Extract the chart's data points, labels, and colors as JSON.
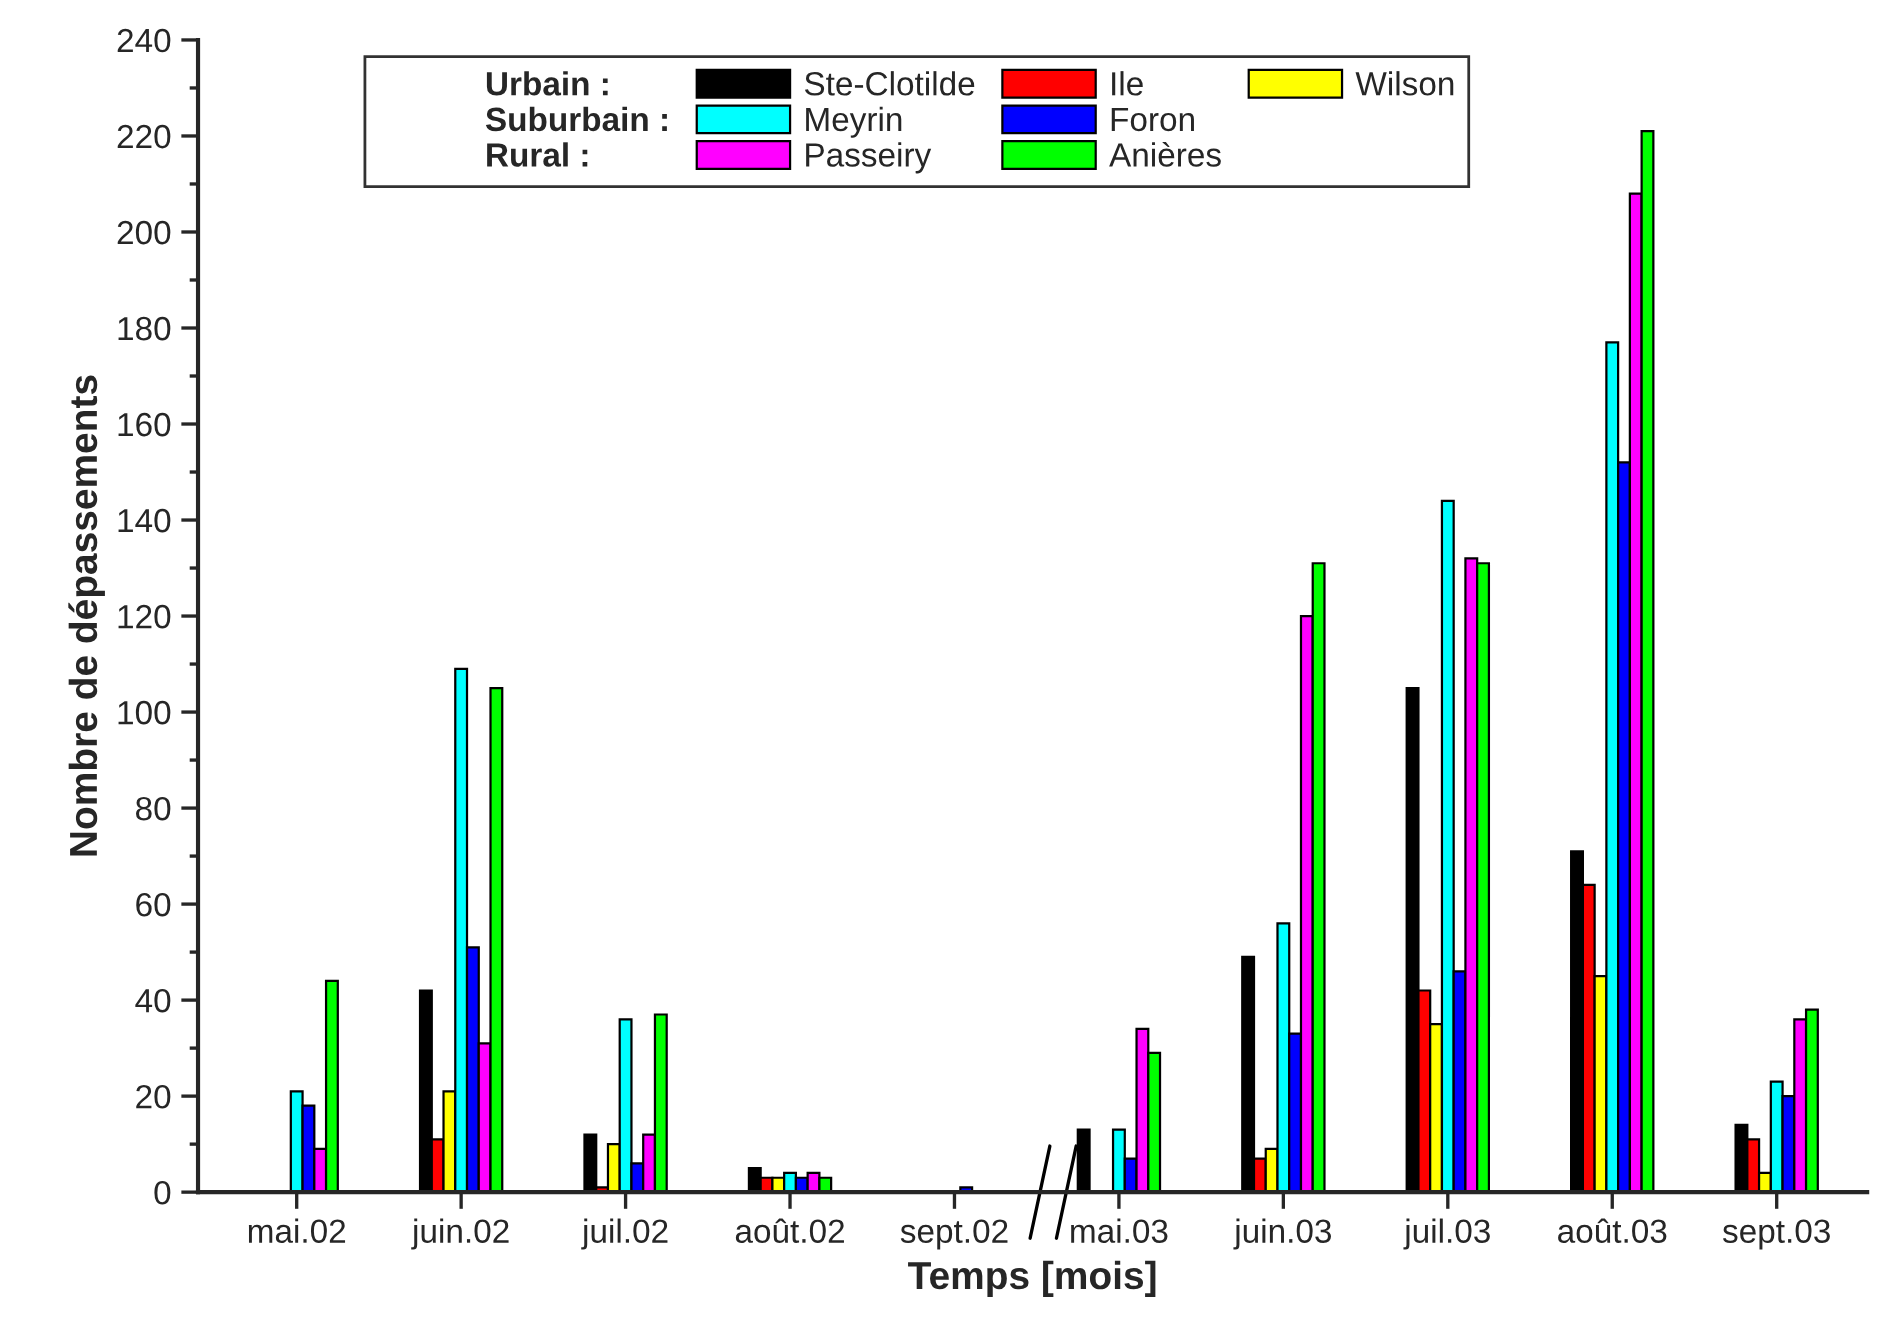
{
  "chart_data": {
    "type": "bar",
    "xlabel": "Temps [mois]",
    "ylabel": "Nombre de dépassements",
    "categories": [
      "mai.02",
      "juin.02",
      "juil.02",
      "août.02",
      "sept.02",
      "mai.03",
      "juin.03",
      "juil.03",
      "août.03",
      "sept.03"
    ],
    "series": [
      {
        "name": "Ste-Clotilde",
        "color": "#000000",
        "values": [
          null,
          42,
          12,
          5,
          null,
          13,
          49,
          105,
          71,
          14
        ]
      },
      {
        "name": "Ile",
        "color": "#ff0000",
        "values": [
          null,
          11,
          1,
          3,
          null,
          null,
          7,
          42,
          64,
          11
        ]
      },
      {
        "name": "Wilson",
        "color": "#ffff00",
        "values": [
          null,
          21,
          10,
          3,
          null,
          null,
          9,
          35,
          45,
          4
        ]
      },
      {
        "name": "Meyrin",
        "color": "#00ffff",
        "values": [
          21,
          109,
          36,
          4,
          null,
          13,
          56,
          144,
          177,
          23
        ]
      },
      {
        "name": "Foron",
        "color": "#0000ff",
        "values": [
          18,
          51,
          6,
          3,
          1,
          7,
          33,
          46,
          152,
          20
        ]
      },
      {
        "name": "Passeiry",
        "color": "#ff00ff",
        "values": [
          9,
          31,
          12,
          4,
          null,
          34,
          120,
          132,
          208,
          36
        ]
      },
      {
        "name": "Anières",
        "color": "#00ff00",
        "values": [
          44,
          105,
          37,
          3,
          null,
          29,
          131,
          131,
          221,
          38
        ]
      }
    ],
    "annotations": [
      "Urbain :",
      "Suburbain :",
      "Rural :"
    ],
    "ylim": [
      0,
      240
    ],
    "yticks": [
      0,
      20,
      40,
      60,
      80,
      100,
      120,
      140,
      160,
      180,
      200,
      220,
      240
    ],
    "grid": false,
    "legend": "top left"
  }
}
